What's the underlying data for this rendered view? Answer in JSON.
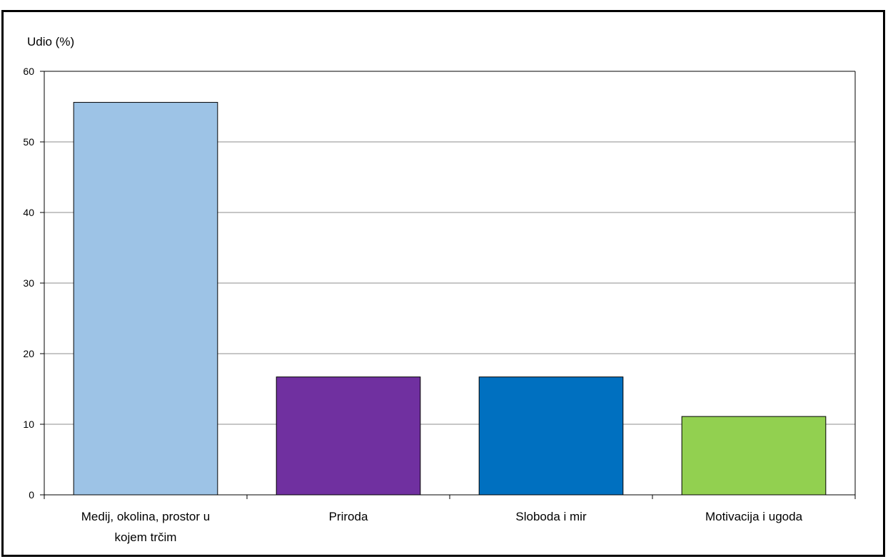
{
  "chart_data": {
    "type": "bar",
    "ylabel": "Udio (%)",
    "xlabel": "",
    "ylim": [
      0,
      60
    ],
    "yticks": [
      0,
      10,
      20,
      30,
      40,
      50,
      60
    ],
    "grid": true,
    "categories": [
      "Medij, okolina, prostor u kojem trčim",
      "Priroda",
      "Sloboda i mir",
      "Motivacija i ugoda"
    ],
    "values": [
      55.6,
      16.7,
      16.7,
      11.1
    ],
    "colors": [
      "#9DC3E6",
      "#7030A0",
      "#0070C0",
      "#92D050"
    ]
  }
}
